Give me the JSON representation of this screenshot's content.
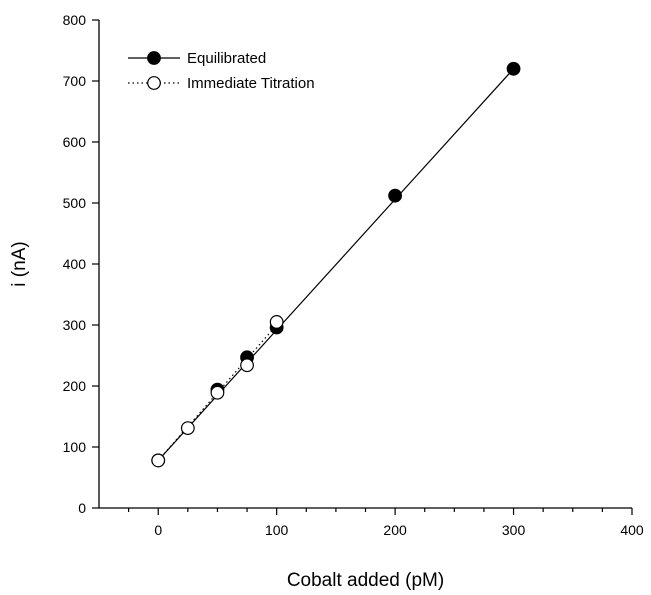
{
  "chart_data": {
    "type": "scatter",
    "xlabel": "Cobalt added (pM)",
    "ylabel": "i (nA)",
    "xlim": [
      -50,
      400
    ],
    "ylim": [
      0,
      800
    ],
    "x_ticks": [
      0,
      100,
      200,
      300,
      400
    ],
    "y_ticks": [
      0,
      100,
      200,
      300,
      400,
      500,
      600,
      700,
      800
    ],
    "x_minor_step": 25,
    "grid": false,
    "legend_position": "top-left",
    "series": [
      {
        "name": "Equilibrated",
        "marker": "filled-circle",
        "line_style": "solid",
        "color": "#000000",
        "points": [
          {
            "x": 0,
            "y": 78
          },
          {
            "x": 50,
            "y": 194
          },
          {
            "x": 75,
            "y": 247
          },
          {
            "x": 100,
            "y": 296
          },
          {
            "x": 200,
            "y": 512
          },
          {
            "x": 300,
            "y": 720
          }
        ],
        "fit": [
          {
            "x": 0,
            "y": 78
          },
          {
            "x": 300,
            "y": 720
          }
        ]
      },
      {
        "name": "Immediate Titration",
        "marker": "open-circle",
        "line_style": "dotted",
        "color": "#000000",
        "points": [
          {
            "x": 0,
            "y": 78
          },
          {
            "x": 25,
            "y": 131
          },
          {
            "x": 50,
            "y": 189
          },
          {
            "x": 75,
            "y": 234
          },
          {
            "x": 100,
            "y": 305
          }
        ],
        "fit": [
          {
            "x": 0,
            "y": 78
          },
          {
            "x": 100,
            "y": 300
          }
        ]
      }
    ]
  }
}
